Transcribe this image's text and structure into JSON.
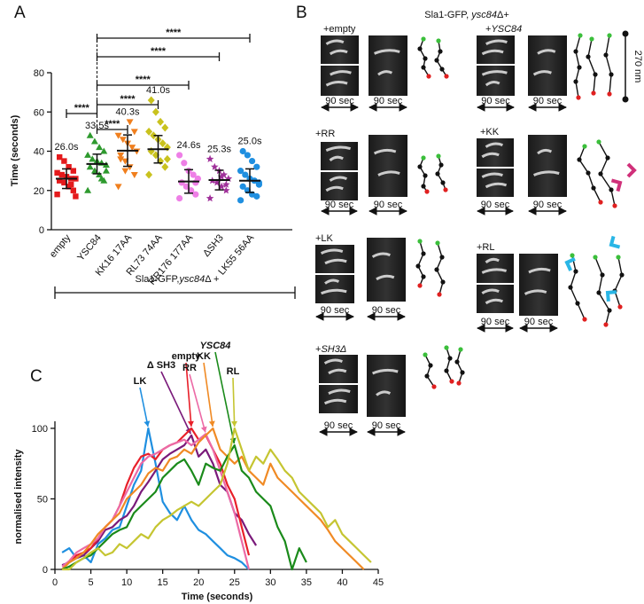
{
  "panel_labels": [
    "A",
    "B",
    "C"
  ],
  "chart_data": [
    {
      "type": "dot",
      "ylabel": "Time (seconds)",
      "categories": [
        "empty",
        "YSC84",
        "KK16 17AA",
        "RL73 74AA",
        "RR176 177AA",
        "ΔSH3",
        "LK55 56AA"
      ],
      "colors": [
        "#e41a1c",
        "#2e9a2e",
        "#f07f1e",
        "#c9c21e",
        "#ee7fe6",
        "#a0309a",
        "#1f8fe0"
      ],
      "markers": [
        "square",
        "triangle",
        "triangle-down",
        "diamond",
        "circle",
        "star",
        "circle"
      ],
      "points": [
        [
          18,
          20,
          22,
          24,
          25,
          26,
          26,
          27,
          28,
          29,
          30,
          32,
          35,
          37,
          17,
          23
        ],
        [
          20,
          25,
          28,
          30,
          32,
          33,
          34,
          35,
          36,
          38,
          40,
          42,
          45,
          48,
          30,
          26
        ],
        [
          22,
          28,
          32,
          35,
          38,
          40,
          42,
          44,
          46,
          48,
          50,
          55,
          30,
          36
        ],
        [
          28,
          32,
          35,
          38,
          40,
          42,
          44,
          46,
          48,
          50,
          52,
          55,
          60,
          66,
          36
        ],
        [
          16,
          18,
          20,
          22,
          24,
          26,
          28,
          30,
          34,
          38,
          24,
          20
        ],
        [
          16,
          20,
          22,
          24,
          25,
          26,
          28,
          30,
          32,
          36,
          23,
          27
        ],
        [
          15,
          17,
          18,
          20,
          22,
          24,
          25,
          26,
          28,
          30,
          32,
          35,
          38,
          40,
          23
        ]
      ],
      "means": [
        26.0,
        33.5,
        40.3,
        41.0,
        24.6,
        25.3,
        25.0
      ],
      "value_labels": [
        "26.0s",
        "33.5s",
        "40.3s",
        "41.0s",
        "24.6s",
        "25.3s",
        "25.0s"
      ],
      "sd": [
        5,
        5,
        8,
        7,
        6,
        5,
        6
      ],
      "ylim": [
        0,
        80
      ],
      "yticks": [
        0,
        20,
        40,
        60,
        80
      ],
      "significance": [
        {
          "pair": [
            "empty",
            "YSC84"
          ],
          "label": "****"
        },
        {
          "pair": [
            "YSC84",
            "KK16 17AA"
          ],
          "label": "****"
        },
        {
          "pair": [
            "YSC84",
            "RL73 74AA"
          ],
          "label": "****"
        },
        {
          "pair": [
            "YSC84",
            "RR176 177AA"
          ],
          "label": "****"
        },
        {
          "pair": [
            "YSC84",
            "ΔSH3"
          ],
          "label": "****"
        },
        {
          "pair": [
            "YSC84",
            "LK55 56AA"
          ],
          "label": "****"
        }
      ],
      "footer": [
        "Sla1-GFP,",
        "ysc84",
        "Δ +"
      ]
    },
    {
      "type": "line",
      "xlabel": "Time (seconds)",
      "ylabel": "normalised intensity",
      "x": [
        1,
        2,
        3,
        4,
        5,
        6,
        7,
        8,
        9,
        10,
        11,
        12,
        13,
        14,
        15,
        16,
        17,
        18,
        19,
        20,
        21,
        22,
        23,
        24,
        25,
        26,
        27,
        28,
        29,
        30,
        31,
        32,
        33,
        34,
        35,
        36,
        37,
        38,
        39,
        40,
        41,
        42,
        43,
        44
      ],
      "xlim": [
        0,
        45
      ],
      "xticks": [
        0,
        5,
        10,
        15,
        20,
        25,
        30,
        35,
        40,
        45
      ],
      "ylim": [
        0,
        105
      ],
      "yticks": [
        0,
        50,
        100
      ],
      "series": [
        {
          "name": "LK",
          "color": "#1f8fe0",
          "values": [
            12,
            15,
            8,
            10,
            5,
            18,
            22,
            28,
            30,
            45,
            60,
            70,
            100,
            75,
            48,
            40,
            35,
            45,
            35,
            28,
            25,
            20,
            15,
            10,
            8,
            5,
            0,
            null,
            null,
            null,
            null,
            null,
            null,
            null,
            null,
            null,
            null,
            null,
            null,
            null,
            null,
            null,
            null,
            null
          ]
        },
        {
          "name": "Δ SH3",
          "color": "#7a1a7a",
          "values": [
            3,
            5,
            8,
            10,
            15,
            20,
            28,
            30,
            35,
            38,
            45,
            55,
            62,
            70,
            78,
            82,
            85,
            88,
            95,
            80,
            85,
            75,
            60,
            55,
            40,
            35,
            25,
            17,
            null,
            null,
            null,
            null,
            null,
            null,
            null,
            null,
            null,
            null,
            null,
            null,
            null,
            null,
            null,
            null
          ]
        },
        {
          "name": "empty",
          "color": "#e8202a",
          "values": [
            0,
            5,
            10,
            12,
            15,
            22,
            30,
            35,
            45,
            60,
            72,
            80,
            82,
            78,
            85,
            88,
            90,
            95,
            100,
            92,
            95,
            85,
            75,
            60,
            50,
            30,
            10,
            null,
            null,
            null,
            null,
            null,
            null,
            null,
            null,
            null,
            null,
            null,
            null,
            null,
            null,
            null,
            null,
            null
          ]
        },
        {
          "name": "RR",
          "color": "#ec6aa6",
          "values": [
            2,
            6,
            12,
            15,
            18,
            22,
            30,
            35,
            45,
            55,
            65,
            75,
            80,
            82,
            85,
            88,
            90,
            92,
            88,
            92,
            96,
            85,
            70,
            55,
            40,
            20,
            0,
            null,
            null,
            null,
            null,
            null,
            null,
            null,
            null,
            null,
            null,
            null,
            null,
            null,
            null,
            null,
            null,
            null
          ]
        },
        {
          "name": "KK",
          "color": "#f08a24",
          "values": [
            0,
            5,
            8,
            12,
            18,
            25,
            30,
            35,
            40,
            50,
            55,
            60,
            68,
            72,
            70,
            78,
            80,
            85,
            82,
            90,
            95,
            100,
            85,
            80,
            75,
            80,
            70,
            65,
            60,
            75,
            65,
            60,
            55,
            50,
            45,
            40,
            35,
            28,
            20,
            15,
            10,
            5,
            0,
            null
          ]
        },
        {
          "name": "YSC84",
          "color": "#1a8a1a",
          "values": [
            0,
            2,
            5,
            8,
            10,
            15,
            20,
            25,
            28,
            30,
            40,
            45,
            50,
            55,
            65,
            70,
            75,
            78,
            70,
            60,
            75,
            72,
            70,
            80,
            88,
            70,
            65,
            55,
            50,
            45,
            30,
            20,
            0,
            15,
            5,
            null,
            null,
            null,
            null,
            null,
            null,
            null,
            null,
            null
          ]
        },
        {
          "name": "RL",
          "color": "#c5c531",
          "values": [
            0,
            0,
            5,
            8,
            12,
            15,
            10,
            12,
            18,
            15,
            20,
            25,
            22,
            30,
            35,
            38,
            42,
            45,
            48,
            45,
            50,
            55,
            60,
            75,
            100,
            85,
            70,
            80,
            75,
            85,
            78,
            70,
            65,
            55,
            50,
            45,
            40,
            30,
            35,
            25,
            20,
            15,
            10,
            5
          ]
        }
      ]
    }
  ],
  "panel_b": {
    "title": [
      "Sla1-GFP, ",
      "ysc84",
      "Δ+"
    ],
    "time_scale": "90 sec",
    "length_scale": "270 nm",
    "panels": [
      {
        "label": [
          "+empty"
        ]
      },
      {
        "label": [
          "+",
          "YSC84"
        ]
      },
      {
        "label": [
          "+RR"
        ]
      },
      {
        "label": [
          "+KK"
        ]
      },
      {
        "label": [
          "+LK"
        ]
      },
      {
        "label": [
          "+RL"
        ]
      },
      {
        "label": [
          "+",
          "SH3Δ"
        ]
      }
    ]
  }
}
